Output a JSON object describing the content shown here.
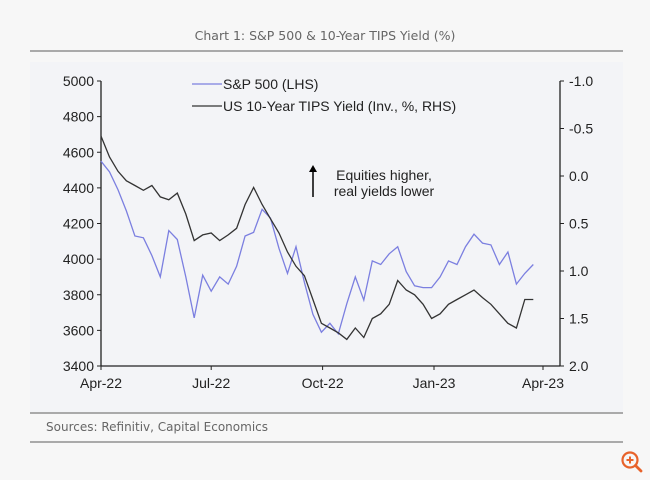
{
  "chart_data": {
    "type": "line",
    "title": "Chart 1: S&P 500 & 10-Year TIPS Yield (%)",
    "source": "Sources: Refinitiv, Capital Economics",
    "annotation": [
      "Equities higher,",
      "real yields lower"
    ],
    "x_ticks": [
      "Apr-22",
      "Jul-22",
      "Oct-22",
      "Jan-23",
      "Apr-23"
    ],
    "x_tick_dates": [
      "2022-04-01",
      "2022-07-01",
      "2022-10-01",
      "2023-01-01",
      "2023-04-01"
    ],
    "xlim": [
      "2022-04-01",
      "2023-04-15"
    ],
    "y_left": {
      "ylim": [
        3400,
        5000
      ],
      "ticks": [
        "3400",
        "3600",
        "3800",
        "4000",
        "4200",
        "4400",
        "4600",
        "4800",
        "5000"
      ]
    },
    "y_right": {
      "ylim": [
        2.0,
        -1.0
      ],
      "inverted": true,
      "ticks": [
        "2.0",
        "1.5",
        "1.0",
        "0.5",
        "0.0",
        "-0.5",
        "-1.0"
      ]
    },
    "legend_position": "top-center",
    "grid": false,
    "dates": [
      "2022-04-01",
      "2022-04-08",
      "2022-04-15",
      "2022-04-22",
      "2022-04-29",
      "2022-05-06",
      "2022-05-13",
      "2022-05-20",
      "2022-05-27",
      "2022-06-03",
      "2022-06-10",
      "2022-06-17",
      "2022-06-24",
      "2022-07-01",
      "2022-07-08",
      "2022-07-15",
      "2022-07-22",
      "2022-07-29",
      "2022-08-05",
      "2022-08-12",
      "2022-08-19",
      "2022-08-26",
      "2022-09-02",
      "2022-09-09",
      "2022-09-16",
      "2022-09-23",
      "2022-09-30",
      "2022-10-07",
      "2022-10-14",
      "2022-10-21",
      "2022-10-28",
      "2022-11-04",
      "2022-11-11",
      "2022-11-18",
      "2022-11-25",
      "2022-12-02",
      "2022-12-09",
      "2022-12-16",
      "2022-12-23",
      "2022-12-30",
      "2023-01-06",
      "2023-01-13",
      "2023-01-20",
      "2023-01-27",
      "2023-02-03",
      "2023-02-10",
      "2023-02-17",
      "2023-02-24",
      "2023-03-03",
      "2023-03-10",
      "2023-03-17",
      "2023-03-24"
    ],
    "series": [
      {
        "name": "S&P 500 (LHS)",
        "axis": "left",
        "color": "#7b7fe0",
        "values": [
          4550,
          4490,
          4390,
          4270,
          4130,
          4120,
          4020,
          3900,
          4160,
          4110,
          3900,
          3670,
          3910,
          3820,
          3900,
          3860,
          3960,
          4130,
          4150,
          4280,
          4230,
          4060,
          3920,
          4070,
          3870,
          3690,
          3590,
          3640,
          3580,
          3750,
          3900,
          3770,
          3990,
          3970,
          4030,
          4070,
          3930,
          3850,
          3840,
          3840,
          3900,
          3990,
          3970,
          4070,
          4140,
          4090,
          4080,
          3970,
          4040,
          3860,
          3920,
          3970
        ]
      },
      {
        "name": "US 10-Year TIPS Yield (Inv., %, RHS)",
        "axis": "right",
        "color": "#333333",
        "values": [
          -0.42,
          -0.2,
          -0.05,
          0.05,
          0.1,
          0.15,
          0.1,
          0.22,
          0.25,
          0.18,
          0.4,
          0.68,
          0.62,
          0.6,
          0.68,
          0.62,
          0.55,
          0.3,
          0.12,
          0.3,
          0.45,
          0.6,
          0.8,
          0.95,
          1.05,
          1.3,
          1.55,
          1.6,
          1.65,
          1.72,
          1.6,
          1.7,
          1.5,
          1.45,
          1.35,
          1.1,
          1.2,
          1.25,
          1.35,
          1.5,
          1.45,
          1.35,
          1.3,
          1.25,
          1.2,
          1.28,
          1.35,
          1.45,
          1.55,
          1.6,
          1.3,
          1.3
        ]
      }
    ]
  },
  "ui": {
    "zoom_icon": "zoom-in-icon",
    "accent": "#e8632b"
  }
}
